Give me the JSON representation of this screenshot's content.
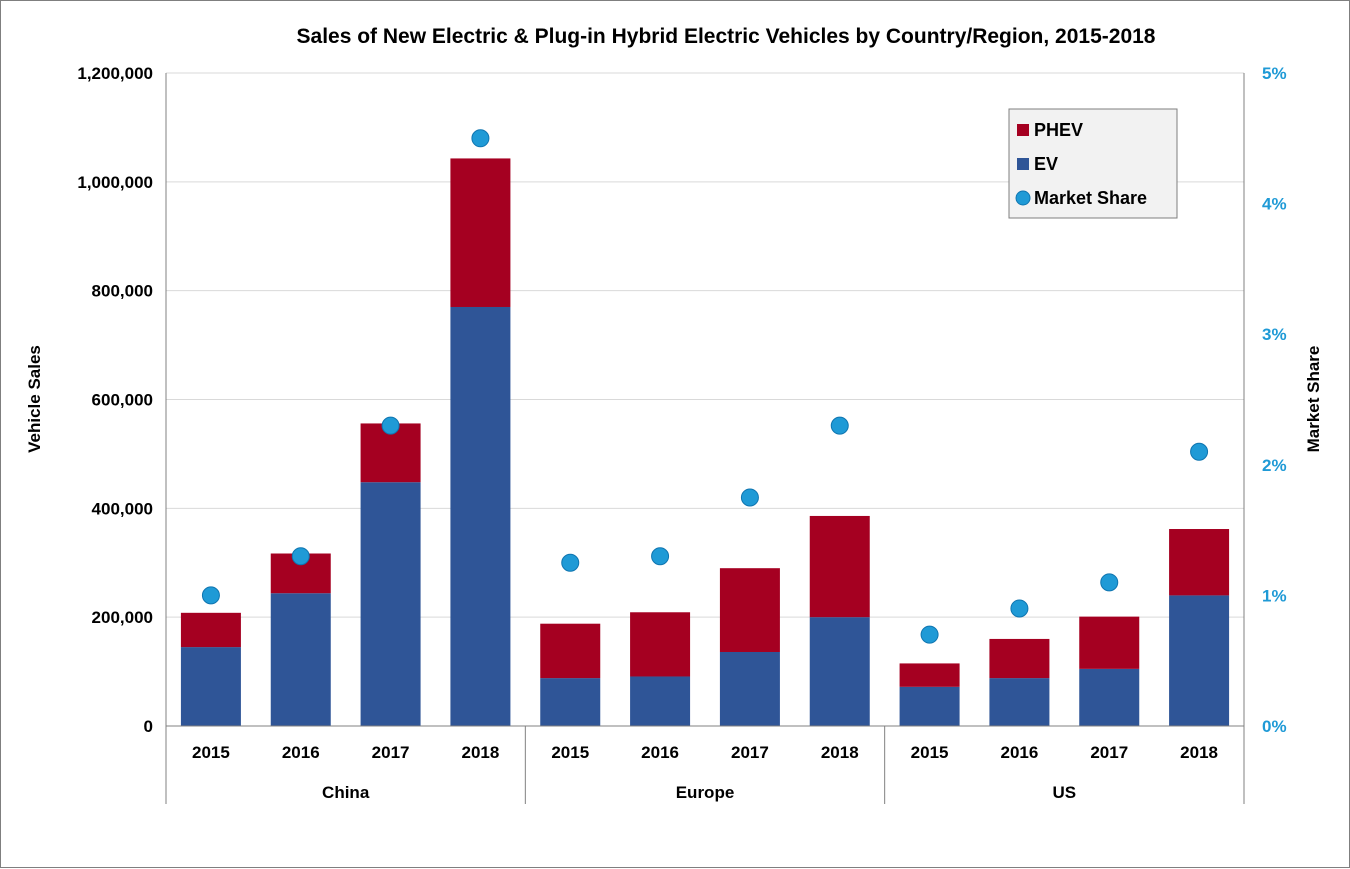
{
  "chart_data": {
    "type": "bar",
    "stacked": true,
    "title": "Sales of New Electric & Plug-in Hybrid Electric Vehicles by Country/Region, 2015-2018",
    "ylabel": "Vehicle Sales",
    "y2label": "Market Share",
    "ylim": [
      0,
      1200000
    ],
    "y2lim": [
      0,
      5
    ],
    "yticks": [
      "0",
      "200,000",
      "400,000",
      "600,000",
      "800,000",
      "1,000,000",
      "1,200,000"
    ],
    "y2ticks": [
      "0%",
      "1%",
      "2%",
      "3%",
      "4%",
      "5%"
    ],
    "groups": [
      {
        "name": "China",
        "categories": [
          "2015",
          "2016",
          "2017",
          "2018"
        ]
      },
      {
        "name": "Europe",
        "categories": [
          "2015",
          "2016",
          "2017",
          "2018"
        ]
      },
      {
        "name": "US",
        "categories": [
          "2015",
          "2016",
          "2017",
          "2018"
        ]
      }
    ],
    "series": [
      {
        "name": "EV",
        "color": "#2f5597",
        "values": [
          145000,
          244000,
          448000,
          770000,
          88000,
          91000,
          136000,
          200000,
          72000,
          88000,
          105000,
          240000
        ]
      },
      {
        "name": "PHEV",
        "color": "#a50021",
        "values": [
          63000,
          73000,
          108000,
          273000,
          100000,
          118000,
          154000,
          186000,
          43000,
          72000,
          96000,
          122000
        ]
      },
      {
        "name": "Market Share",
        "color": "#1f9ad6",
        "axis": "right",
        "marker": "circle",
        "values": [
          1.0,
          1.3,
          2.3,
          4.5,
          1.25,
          1.3,
          1.75,
          2.3,
          0.7,
          0.9,
          1.1,
          2.1
        ]
      }
    ],
    "legend": {
      "position": "top-right",
      "entries": [
        "PHEV",
        "EV",
        "Market Share"
      ]
    }
  }
}
